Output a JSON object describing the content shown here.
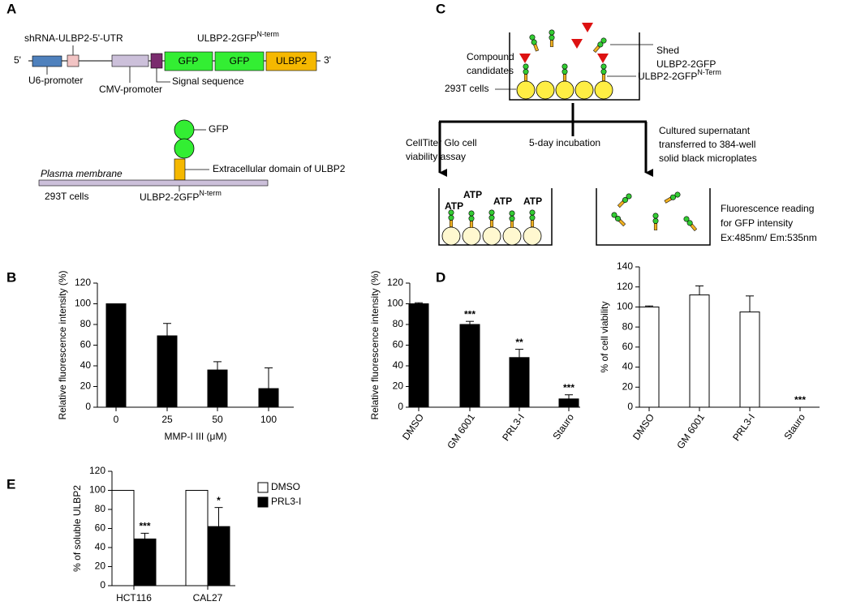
{
  "panel_labels": {
    "a": "A",
    "b": "B",
    "c": "C",
    "d": "D",
    "e": "E"
  },
  "panel_a": {
    "five_prime": "5'",
    "three_prime": "3'",
    "shrna": "shRNA-ULBP2-5'-UTR",
    "construct": "ULBP2-2GFP",
    "construct_sup": "N-term",
    "gfp1": "GFP",
    "gfp2": "GFP",
    "ulbp2": "ULBP2",
    "u6": "U6-promoter",
    "cmv": "CMV-promoter",
    "signal": "Signal sequence",
    "gfp_label": "GFP",
    "extracellular": "Extracellular domain of ULBP2",
    "membrane": "Plasma membrane",
    "cells": "293T cells",
    "protein": "ULBP2-2GFP",
    "protein_sup": "N-term"
  },
  "panel_c": {
    "shed": [
      "Shed",
      "ULBP2-2GFP"
    ],
    "compound": [
      "Compound",
      "candidates"
    ],
    "cells": "293T cells",
    "protein": "ULBP2-2GFP",
    "protein_sup": "N-Term",
    "viability": [
      "CellTiter Glo cell",
      "viability assay"
    ],
    "incubation": "5-day incubation",
    "supernatant": [
      "Cultured supernatant",
      "transferred to 384-well",
      "solid black microplates"
    ],
    "atp": [
      "ATP",
      "ATP",
      "ATP",
      "ATP"
    ],
    "reading": [
      "Fluorescence reading",
      "for GFP intensity",
      "Ex:485nm/ Em:535nm"
    ]
  },
  "chart_data": [
    {
      "type": "bar",
      "y_label": "Relative fluorescence intensity (%)",
      "x_label": "MMP-I III (μM)",
      "categories": [
        "0",
        "25",
        "50",
        "100"
      ],
      "series": [
        {
          "color": "#000000",
          "values": [
            100,
            69,
            36,
            18
          ],
          "errors": [
            0,
            12,
            8,
            20
          ]
        }
      ],
      "ylim": [
        0,
        120
      ],
      "yticks": [
        0,
        20,
        40,
        60,
        80,
        100,
        120
      ]
    },
    {
      "type": "bar",
      "y_label": "Relative fluorescence intensity (%)",
      "categories": [
        "DMSO",
        "GM 6001",
        "PRL3-I",
        "Stauro"
      ],
      "series": [
        {
          "color": "#000000",
          "values": [
            100,
            80,
            48,
            8
          ],
          "errors": [
            1,
            3,
            8,
            4
          ]
        }
      ],
      "ylim": [
        0,
        120
      ],
      "yticks": [
        0,
        20,
        40,
        60,
        80,
        100,
        120
      ],
      "annotations": [
        {
          "category": "GM 6001",
          "text": "***"
        },
        {
          "category": "PRL3-I",
          "text": "**"
        },
        {
          "category": "Stauro",
          "text": "***"
        }
      ]
    },
    {
      "type": "bar",
      "y_label": "% of cell viability",
      "categories": [
        "DMSO",
        "GM 6001",
        "PRL3-I",
        "Stauro"
      ],
      "series": [
        {
          "color": "#ffffff",
          "values": [
            100,
            112,
            95,
            0
          ],
          "errors": [
            1,
            9,
            16,
            0
          ]
        }
      ],
      "ylim": [
        0,
        140
      ],
      "yticks": [
        0,
        20,
        40,
        60,
        80,
        100,
        120,
        140
      ],
      "annotations": [
        {
          "category": "Stauro",
          "text": "***"
        }
      ]
    },
    {
      "type": "bar",
      "y_label": "% of soluble ULBP2",
      "categories": [
        "HCT116",
        "CAL27"
      ],
      "series": [
        {
          "name": "DMSO",
          "color": "#ffffff",
          "values": [
            100,
            100
          ],
          "errors": [
            0,
            0
          ]
        },
        {
          "name": "PRL3-I",
          "color": "#000000",
          "values": [
            49,
            62
          ],
          "errors": [
            6,
            20
          ]
        }
      ],
      "ylim": [
        0,
        120
      ],
      "yticks": [
        0,
        20,
        40,
        60,
        80,
        100,
        120
      ],
      "annotations": [
        {
          "category": "HCT116",
          "series": "PRL3-I",
          "text": "***"
        },
        {
          "category": "CAL27",
          "series": "PRL3-I",
          "text": "*"
        }
      ]
    }
  ]
}
